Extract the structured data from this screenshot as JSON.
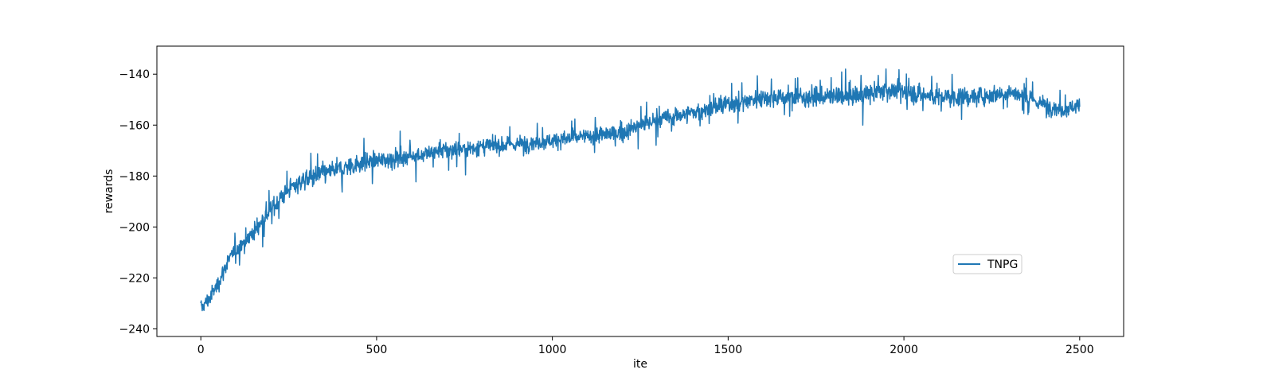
{
  "chart_data": {
    "type": "line",
    "title": "",
    "xlabel": "ite",
    "ylabel": "rewards",
    "xlim": [
      -125,
      2625
    ],
    "ylim": [
      -243,
      -129
    ],
    "xticks": [
      0,
      500,
      1000,
      1500,
      2000,
      2500
    ],
    "yticks": [
      -240,
      -220,
      -200,
      -180,
      -160,
      -140
    ],
    "xtick_labels": [
      "0",
      "500",
      "1000",
      "1500",
      "2000",
      "2500"
    ],
    "ytick_labels": [
      "−240",
      "−220",
      "−200",
      "−180",
      "−160",
      "−140"
    ],
    "grid": false,
    "legend_position": "lower-right",
    "x_count": 2500,
    "series": [
      {
        "name": "TNPG",
        "color": "#1f77b4",
        "x_start": 0,
        "x_end": 2500,
        "trend": [
          [
            0,
            -232
          ],
          [
            25,
            -228
          ],
          [
            50,
            -222
          ],
          [
            75,
            -214
          ],
          [
            100,
            -209
          ],
          [
            150,
            -202
          ],
          [
            200,
            -193
          ],
          [
            250,
            -185
          ],
          [
            300,
            -181
          ],
          [
            350,
            -179
          ],
          [
            400,
            -177
          ],
          [
            450,
            -175
          ],
          [
            500,
            -174
          ],
          [
            600,
            -172
          ],
          [
            700,
            -170
          ],
          [
            800,
            -168.5
          ],
          [
            900,
            -167.5
          ],
          [
            1000,
            -166
          ],
          [
            1100,
            -164.5
          ],
          [
            1200,
            -163
          ],
          [
            1250,
            -160
          ],
          [
            1300,
            -158
          ],
          [
            1400,
            -155
          ],
          [
            1500,
            -152
          ],
          [
            1600,
            -149
          ],
          [
            1700,
            -149
          ],
          [
            1800,
            -149
          ],
          [
            1900,
            -148
          ],
          [
            1950,
            -146
          ],
          [
            2000,
            -147
          ],
          [
            2100,
            -149
          ],
          [
            2200,
            -149
          ],
          [
            2300,
            -147
          ],
          [
            2400,
            -152
          ],
          [
            2450,
            -154
          ],
          [
            2500,
            -152
          ]
        ],
        "noise_amplitude": [
          [
            0,
            4
          ],
          [
            300,
            5
          ],
          [
            1000,
            4
          ],
          [
            1500,
            4.5
          ],
          [
            2000,
            5
          ],
          [
            2500,
            4
          ]
        ]
      }
    ]
  }
}
